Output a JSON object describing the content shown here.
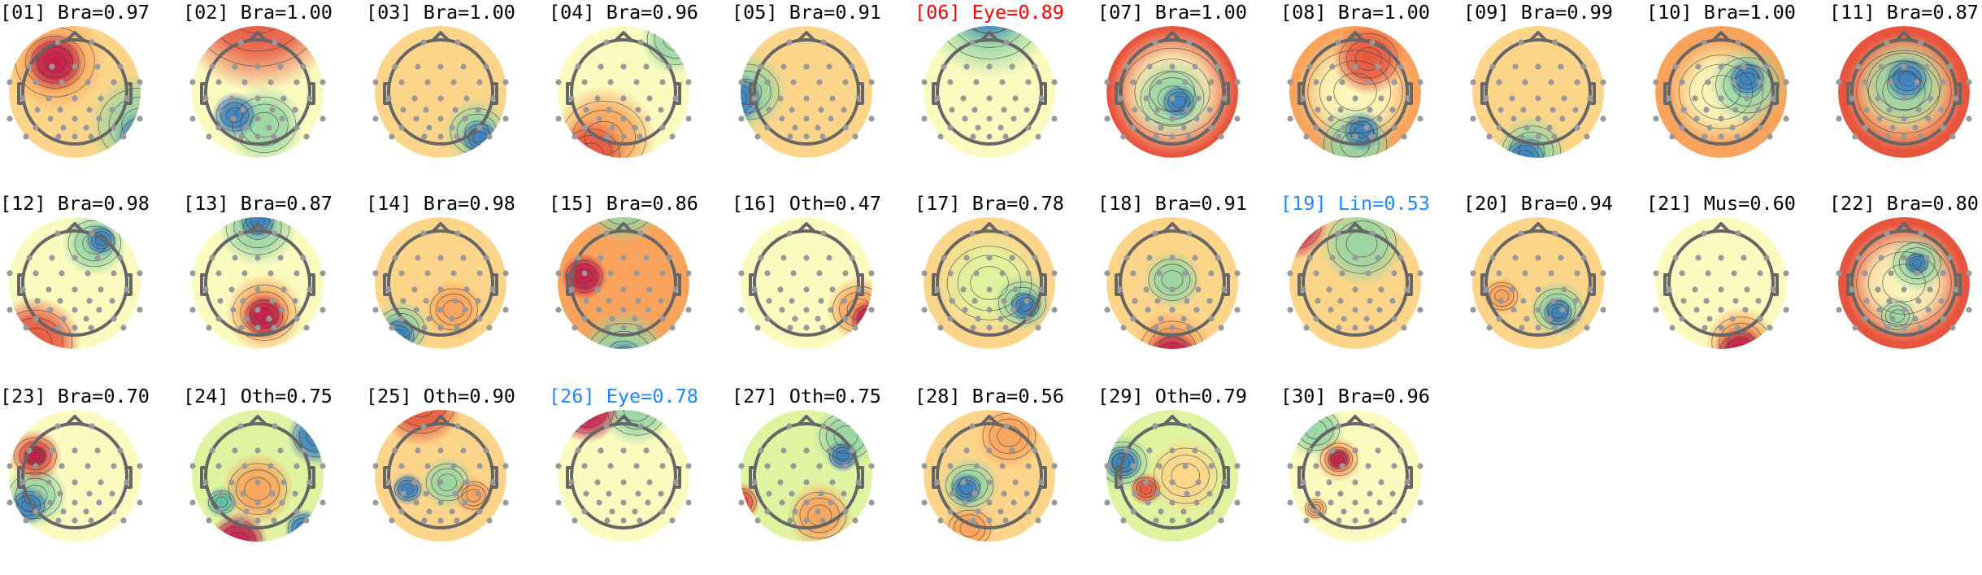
{
  "colormap": [
    "#9e0142",
    "#d53e4f",
    "#f46d43",
    "#fdae61",
    "#fee08b",
    "#ffffbf",
    "#e6f598",
    "#abdda4",
    "#66c2a5",
    "#3288bd",
    "#5e4fa2"
  ],
  "head_outline_color": "#666666",
  "electrode_color": "#999999",
  "components": [
    {
      "title": "[01] Bra=0.97",
      "color": "#000000"
    },
    {
      "title": "[02] Bra=1.00",
      "color": "#000000"
    },
    {
      "title": "[03] Bra=1.00",
      "color": "#000000"
    },
    {
      "title": "[04] Bra=0.96",
      "color": "#000000"
    },
    {
      "title": "[05] Bra=0.91",
      "color": "#000000"
    },
    {
      "title": "[06] Eye=0.89",
      "color": "#ff0000"
    },
    {
      "title": "[07] Bra=1.00",
      "color": "#000000"
    },
    {
      "title": "[08] Bra=1.00",
      "color": "#000000"
    },
    {
      "title": "[09] Bra=0.99",
      "color": "#000000"
    },
    {
      "title": "[10] Bra=1.00",
      "color": "#000000"
    },
    {
      "title": "[11] Bra=0.87",
      "color": "#000000"
    },
    {
      "title": "[12] Bra=0.98",
      "color": "#000000"
    },
    {
      "title": "[13] Bra=0.87",
      "color": "#000000"
    },
    {
      "title": "[14] Bra=0.98",
      "color": "#000000"
    },
    {
      "title": "[15] Bra=0.86",
      "color": "#000000"
    },
    {
      "title": "[16] Oth=0.47",
      "color": "#000000"
    },
    {
      "title": "[17] Bra=0.78",
      "color": "#000000"
    },
    {
      "title": "[18] Bra=0.91",
      "color": "#000000"
    },
    {
      "title": "[19] Lin=0.53",
      "color": "#1e88ff"
    },
    {
      "title": "[20] Bra=0.94",
      "color": "#000000"
    },
    {
      "title": "[21] Mus=0.60",
      "color": "#000000"
    },
    {
      "title": "[22] Bra=0.80",
      "color": "#000000"
    },
    {
      "title": "[23] Bra=0.70",
      "color": "#000000"
    },
    {
      "title": "[24] Oth=0.75",
      "color": "#000000"
    },
    {
      "title": "[25] Oth=0.90",
      "color": "#000000"
    },
    {
      "title": "[26] Eye=0.78",
      "color": "#1e88ff"
    },
    {
      "title": "[27] Oth=0.75",
      "color": "#000000"
    },
    {
      "title": "[28] Bra=0.56",
      "color": "#000000"
    },
    {
      "title": "[29] Oth=0.79",
      "color": "#000000"
    },
    {
      "title": "[30] Bra=0.96",
      "color": "#000000"
    }
  ]
}
